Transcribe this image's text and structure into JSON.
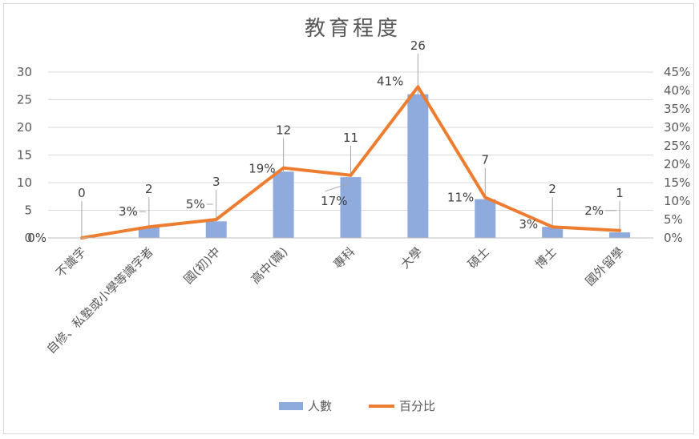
{
  "chart_data": {
    "type": "bar+line",
    "title": "教育程度",
    "categories": [
      "不識字",
      "自修、私塾或小學等識字者",
      "國(初)中",
      "高中(職)",
      "專科",
      "大學",
      "碩士",
      "博士",
      "國外留學"
    ],
    "series": [
      {
        "name": "人數",
        "type": "bar",
        "axis": "left",
        "values": [
          0,
          2,
          3,
          12,
          11,
          26,
          7,
          2,
          1
        ],
        "labels": [
          "0",
          "2",
          "3",
          "12",
          "11",
          "26",
          "7",
          "2",
          "1"
        ],
        "color": "#8faadc"
      },
      {
        "name": "百分比",
        "type": "line",
        "axis": "right",
        "values": [
          0,
          3,
          5,
          19,
          17,
          41,
          11,
          3,
          2
        ],
        "labels": [
          "0%",
          "3%",
          "5%",
          "19%",
          "17%",
          "41%",
          "11%",
          "3%",
          "2%"
        ],
        "color": "#ed7d31"
      }
    ],
    "yleft": {
      "min": 0,
      "max": 30,
      "ticks": [
        "0",
        "5",
        "10",
        "15",
        "20",
        "25",
        "30"
      ]
    },
    "yright": {
      "min": 0,
      "max": 45,
      "ticks": [
        "0%",
        "5%",
        "10%",
        "15%",
        "20%",
        "25%",
        "30%",
        "35%",
        "40%",
        "45%"
      ]
    },
    "grid": true,
    "legend": "bottom"
  }
}
